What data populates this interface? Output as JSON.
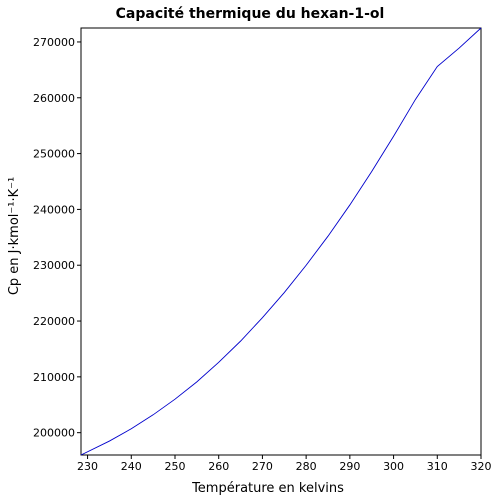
{
  "chart_data": {
    "type": "line",
    "title": "Capacité thermique du hexan-1-ol",
    "xlabel": "Température en kelvins",
    "ylabel": "Cp en J·kmol⁻¹·K⁻¹",
    "xlim": [
      228.5,
      320
    ],
    "ylim": [
      196000,
      272500
    ],
    "x_ticks": [
      230,
      240,
      250,
      260,
      270,
      280,
      290,
      300,
      310,
      320
    ],
    "y_ticks": [
      200000,
      210000,
      220000,
      230000,
      240000,
      250000,
      260000,
      270000
    ],
    "grid": false,
    "series": [
      {
        "color": "#0000cc",
        "x": [
          228.5,
          235,
          240,
          245,
          250,
          255,
          260,
          265,
          270,
          275,
          280,
          285,
          290,
          295,
          300,
          305,
          310,
          315,
          320
        ],
        "y": [
          196000,
          198500,
          200700,
          203200,
          206000,
          209100,
          212600,
          216400,
          220600,
          225100,
          230000,
          235200,
          240800,
          246800,
          253100,
          259700,
          265600,
          268900,
          272500
        ]
      }
    ]
  }
}
